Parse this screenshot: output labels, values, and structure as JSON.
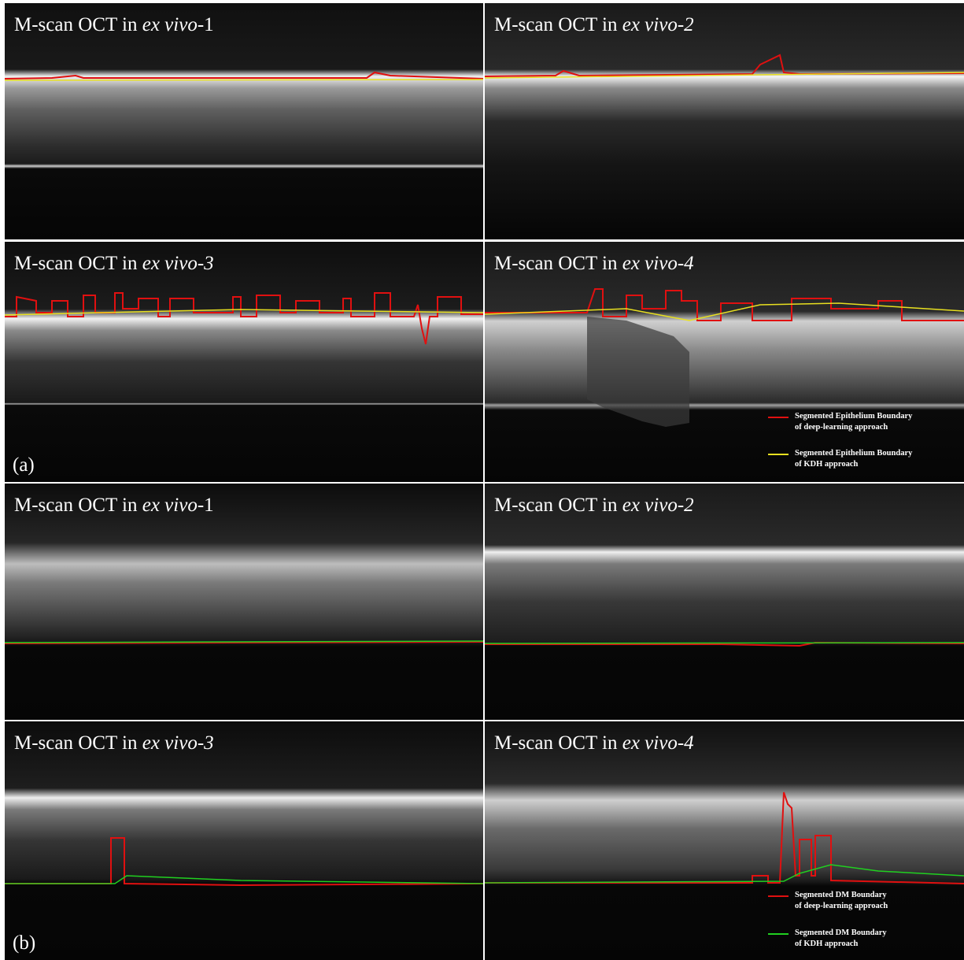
{
  "figure": {
    "part_a": {
      "label": "(a)",
      "panels": [
        {
          "prefix": "M-scan OCT in ",
          "italic": "ex vivo",
          "suffix": "-1"
        },
        {
          "prefix": "M-scan OCT in ",
          "italic": "ex vivo-2",
          "suffix": ""
        },
        {
          "prefix": "M-scan OCT in ",
          "italic": "ex vivo-3",
          "suffix": ""
        },
        {
          "prefix": "M-scan OCT in ",
          "italic": "ex vivo-4",
          "suffix": ""
        }
      ],
      "legend": [
        {
          "line1": "Segmented Epithelium Boundary",
          "line2": "of deep-learning approach",
          "color": "#e01010"
        },
        {
          "line1": "Segmented Epithelium Boundary",
          "line2": "of KDH approach",
          "color": "#e8e020"
        }
      ]
    },
    "part_b": {
      "label": "(b)",
      "panels": [
        {
          "prefix": "M-scan OCT in ",
          "italic": "ex vivo",
          "suffix": "-1"
        },
        {
          "prefix": "M-scan OCT in ",
          "italic": "ex vivo-2",
          "suffix": ""
        },
        {
          "prefix": "M-scan OCT in ",
          "italic": "ex vivo-3",
          "suffix": ""
        },
        {
          "prefix": "M-scan OCT in ",
          "italic": "ex vivo-4",
          "suffix": ""
        }
      ],
      "legend": [
        {
          "line1": "Segmented DM Boundary",
          "line2": "of deep-learning approach",
          "color": "#e01010"
        },
        {
          "line1": "Segmented DM Boundary",
          "line2": "of KDH approach",
          "color": "#20d020"
        }
      ]
    }
  }
}
